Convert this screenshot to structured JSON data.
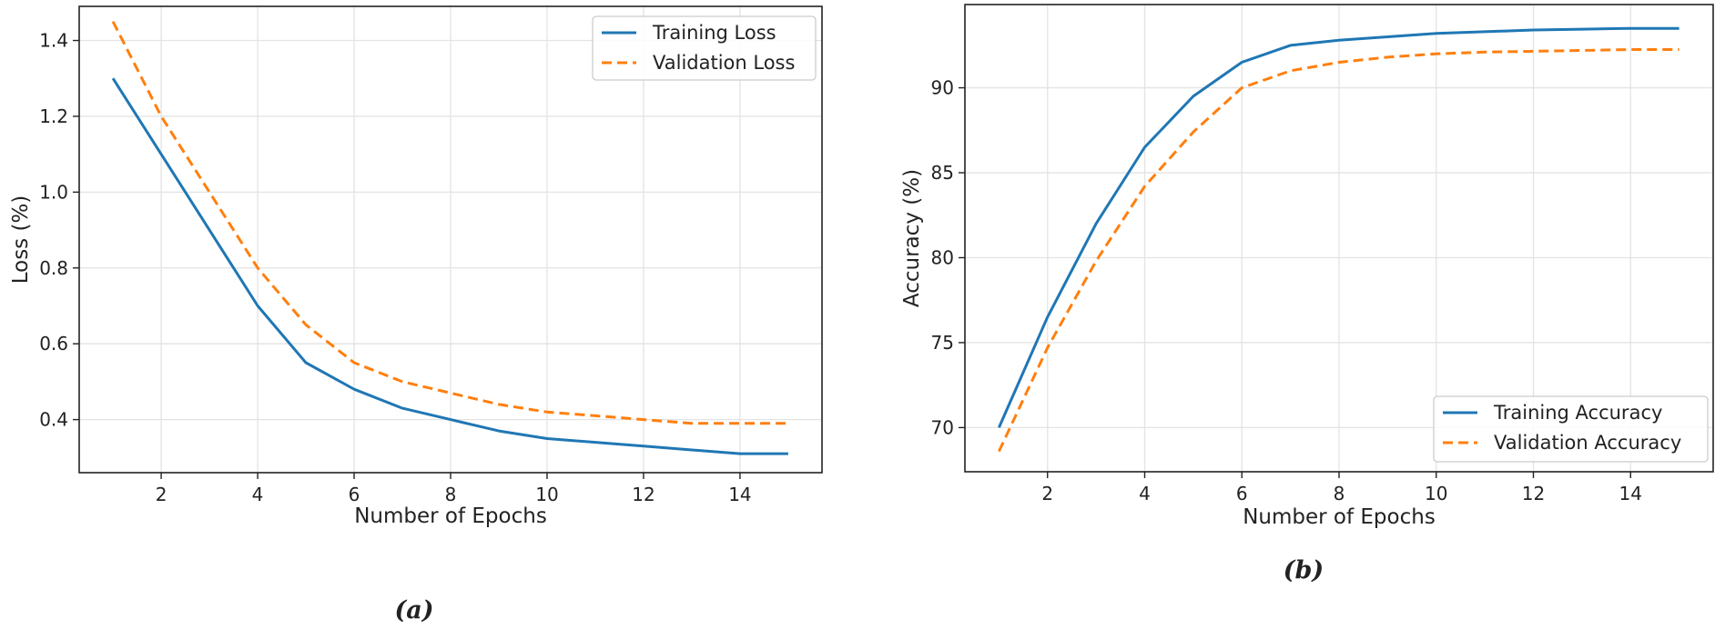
{
  "chart_data": [
    {
      "type": "line",
      "caption": "(a)",
      "xlabel": "Number of Epochs",
      "ylabel": "Loss (%)",
      "x": [
        1,
        2,
        3,
        4,
        5,
        6,
        7,
        8,
        9,
        10,
        11,
        12,
        13,
        14,
        15
      ],
      "xlim": [
        0.3,
        15.7
      ],
      "ylim": [
        0.26,
        1.49
      ],
      "xticks": [
        2,
        4,
        6,
        8,
        10,
        12,
        14
      ],
      "yticks": [
        0.4,
        0.6,
        0.8,
        1.0,
        1.2,
        1.4
      ],
      "ytick_labels": [
        "0.4",
        "0.6",
        "0.8",
        "1.0",
        "1.2",
        "1.4"
      ],
      "grid": true,
      "legend_position": "top-right",
      "series": [
        {
          "name": "Training Loss",
          "color": "#1f77b4",
          "style": "solid",
          "values": [
            1.3,
            1.1,
            0.9,
            0.7,
            0.55,
            0.48,
            0.43,
            0.4,
            0.37,
            0.35,
            0.34,
            0.33,
            0.32,
            0.31,
            0.31
          ]
        },
        {
          "name": "Validation Loss",
          "color": "#ff7f0e",
          "style": "dashed",
          "values": [
            1.45,
            1.2,
            1.0,
            0.8,
            0.65,
            0.55,
            0.5,
            0.47,
            0.44,
            0.42,
            0.41,
            0.4,
            0.39,
            0.39,
            0.39
          ]
        }
      ]
    },
    {
      "type": "line",
      "caption": "(b)",
      "xlabel": "Number of Epochs",
      "ylabel": "Accuracy (%)",
      "x": [
        1,
        2,
        3,
        4,
        5,
        6,
        7,
        8,
        9,
        10,
        11,
        12,
        13,
        14,
        15
      ],
      "xlim": [
        0.3,
        15.7
      ],
      "ylim": [
        67.4,
        94.9
      ],
      "xticks": [
        2,
        4,
        6,
        8,
        10,
        12,
        14
      ],
      "yticks": [
        70,
        75,
        80,
        85,
        90
      ],
      "ytick_labels": [
        "70",
        "75",
        "80",
        "85",
        "90"
      ],
      "grid": true,
      "legend_position": "bottom-right",
      "series": [
        {
          "name": "Training Accuracy",
          "color": "#1f77b4",
          "style": "solid",
          "values": [
            70.0,
            76.5,
            82.0,
            86.5,
            89.5,
            91.5,
            92.5,
            92.8,
            93.0,
            93.2,
            93.3,
            93.4,
            93.45,
            93.5,
            93.5
          ]
        },
        {
          "name": "Validation Accuracy",
          "color": "#ff7f0e",
          "style": "dashed",
          "values": [
            68.6,
            74.7,
            79.8,
            84.2,
            87.4,
            90.0,
            91.0,
            91.5,
            91.8,
            92.0,
            92.1,
            92.15,
            92.2,
            92.25,
            92.25
          ]
        }
      ]
    }
  ]
}
